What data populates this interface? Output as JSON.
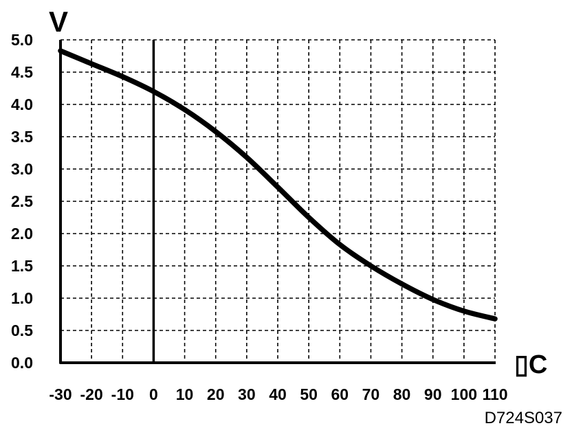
{
  "chart_data": {
    "type": "line",
    "title": "",
    "ylabel": "V",
    "xlabel": "▯C",
    "xlim": [
      -30,
      110
    ],
    "ylim": [
      0,
      5
    ],
    "grid": true,
    "grid_style": "dashed",
    "x_ticks": [
      -30,
      -20,
      -10,
      0,
      10,
      20,
      30,
      40,
      50,
      60,
      70,
      80,
      90,
      100,
      110
    ],
    "x_tick_labels": [
      "-30",
      "-20",
      "-10",
      "0",
      "10",
      "20",
      "30",
      "40",
      "50",
      "60",
      "70",
      "80",
      "90",
      "100",
      "110"
    ],
    "y_ticks": [
      0,
      0.5,
      1,
      1.5,
      2,
      2.5,
      3,
      3.5,
      4,
      4.5,
      5
    ],
    "y_tick_labels": [
      "0.0",
      "0.5",
      "1.0",
      "1.5",
      "2.0",
      "2.5",
      "3.0",
      "3.5",
      "4.0",
      "4.5",
      "5.0"
    ],
    "reference_line_x": 0,
    "series": [
      {
        "color": "#000000",
        "x": [
          -30,
          -20,
          -10,
          0,
          10,
          20,
          30,
          40,
          50,
          60,
          70,
          80,
          90,
          100,
          110
        ],
        "y": [
          4.83,
          4.63,
          4.43,
          4.2,
          3.92,
          3.58,
          3.18,
          2.72,
          2.25,
          1.83,
          1.5,
          1.22,
          0.98,
          0.8,
          0.68
        ]
      }
    ]
  },
  "caption": "D724S037"
}
